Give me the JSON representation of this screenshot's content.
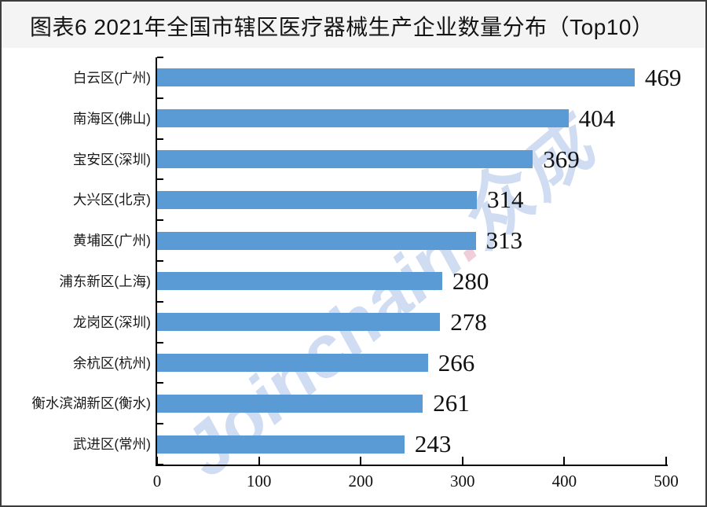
{
  "watermark": {
    "latin": "Joinchain",
    "dot": ".",
    "cjk": "众成"
  },
  "chart_data": {
    "type": "bar",
    "orientation": "horizontal",
    "title": "图表6 2021年全国市辖区医疗器械生产企业数量分布（Top10）",
    "categories": [
      "白云区(广州)",
      "南海区(佛山)",
      "宝安区(深圳)",
      "大兴区(北京)",
      "黄埔区(广州)",
      "浦东新区(上海)",
      "龙岗区(深圳)",
      "余杭区(杭州)",
      "衡水滨湖新区(衡水)",
      "武进区(常州)"
    ],
    "values": [
      469,
      404,
      369,
      314,
      313,
      280,
      278,
      266,
      261,
      243
    ],
    "xlabel": "",
    "ylabel": "",
    "xlim": [
      0,
      500
    ],
    "xticks": [
      0,
      100,
      200,
      300,
      400,
      500
    ],
    "grid": false,
    "legend": false,
    "value_labels": true,
    "bar_color": "#5B9BD5",
    "axis_color": "#000000",
    "title_color": "#141414",
    "title_bg": "#f4f4f4"
  }
}
